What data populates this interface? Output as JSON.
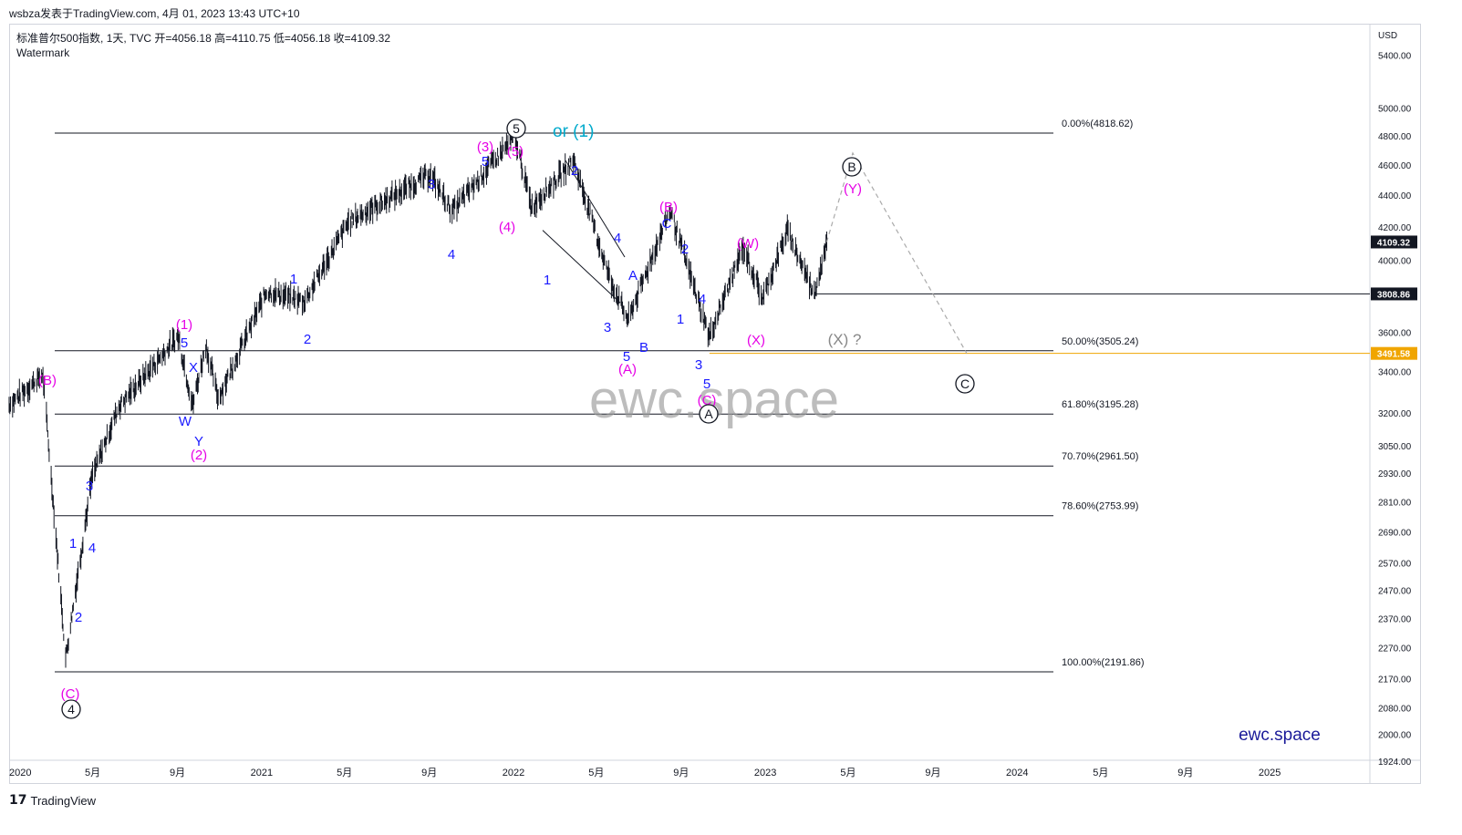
{
  "header": {
    "publisher_line": "wsbza发表于TradingView.com,  4月 01, 2023 13:43 UTC+10",
    "symbol_line": "标准普尔500指数, 1天, TVC  开=4056.18  高=4110.75  低=4056.18  收=4109.32",
    "watermark_label": "Watermark"
  },
  "footer": {
    "logo": "17",
    "brand": "TradingView"
  },
  "colors": {
    "blue": "#1a1aff",
    "magenta": "#e600e6",
    "teal": "#00aacc",
    "gray": "#888888",
    "price_tag": "#131722",
    "orange": "#f0a500",
    "candles": "#131722"
  },
  "chart_data": {
    "type": "line",
    "title": "标准普尔500指数, 1天, TVC",
    "currency": "USD",
    "scale": "log",
    "ylim": [
      1880,
      5900
    ],
    "x_ticks": [
      "2020",
      "5月",
      "9月",
      "2021",
      "5月",
      "9月",
      "2022",
      "5月",
      "9月",
      "2023",
      "5月",
      "9月",
      "2024",
      "5月",
      "9月",
      "2025"
    ],
    "y_ticks": [
      "5400.00",
      "5000.00",
      "4800.00",
      "4600.00",
      "4400.00",
      "4200.00",
      "4000.00",
      "3600.00",
      "3400.00",
      "3200.00",
      "3050.00",
      "2930.00",
      "2810.00",
      "2690.00",
      "2570.00",
      "2470.00",
      "2370.00",
      "2270.00",
      "2170.00",
      "2080.00",
      "2000.00",
      "1924.00"
    ],
    "price_tags": [
      {
        "label": "4109.32",
        "value": 4109.32,
        "style": "dark"
      },
      {
        "label": "3808.86",
        "value": 3808.86,
        "style": "dark"
      },
      {
        "label": "3491.58",
        "value": 3491.58,
        "style": "orange"
      }
    ],
    "fib_levels": [
      {
        "label": "0.00%(4818.62)",
        "value": 4818.62
      },
      {
        "label": "50.00%(3505.24)",
        "value": 3505.24
      },
      {
        "label": "61.80%(3195.28)",
        "value": 3195.28
      },
      {
        "label": "70.70%(2961.50)",
        "value": 2961.5
      },
      {
        "label": "78.60%(2753.99)",
        "value": 2753.99
      },
      {
        "label": "100.00%(2191.86)",
        "value": 2191.86
      }
    ],
    "series": [
      {
        "values_approx": [
          [
            "2020-01-01",
            3240
          ],
          [
            "2020-02-19",
            3386
          ],
          [
            "2020-03-23",
            2237
          ],
          [
            "2020-04-30",
            2912
          ],
          [
            "2020-06-08",
            3232
          ],
          [
            "2020-09-02",
            3580
          ],
          [
            "2020-09-23",
            3236
          ],
          [
            "2020-10-12",
            3534
          ],
          [
            "2020-10-30",
            3270
          ],
          [
            "2021-01-08",
            3824
          ],
          [
            "2021-03-04",
            3768
          ],
          [
            "2021-05-07",
            4232
          ],
          [
            "2021-09-02",
            4537
          ],
          [
            "2021-10-04",
            4300
          ],
          [
            "2022-01-03",
            4796
          ],
          [
            "2022-01-27",
            4326
          ],
          [
            "2022-03-29",
            4631
          ],
          [
            "2022-05-20",
            3900
          ],
          [
            "2022-06-16",
            3666
          ],
          [
            "2022-08-16",
            4305
          ],
          [
            "2022-10-12",
            3577
          ],
          [
            "2022-11-30",
            4080
          ],
          [
            "2022-12-28",
            3783
          ],
          [
            "2023-02-02",
            4179
          ],
          [
            "2023-03-13",
            3808
          ],
          [
            "2023-03-31",
            4109
          ]
        ]
      }
    ],
    "projection": [
      {
        "label": "(Y) / B",
        "value": 4680
      },
      {
        "label": "C",
        "value": 3491.58
      }
    ],
    "wave_labels": [
      {
        "text": "(B)",
        "color": "magenta"
      },
      {
        "text": "(C)",
        "color": "magenta"
      },
      {
        "text": "4",
        "circled": true
      },
      {
        "text": "1",
        "color": "blue"
      },
      {
        "text": "2",
        "color": "blue"
      },
      {
        "text": "3",
        "color": "blue"
      },
      {
        "text": "4",
        "color": "blue"
      },
      {
        "text": "(1)",
        "color": "magenta"
      },
      {
        "text": "5",
        "color": "blue"
      },
      {
        "text": "X",
        "color": "blue"
      },
      {
        "text": "W",
        "color": "blue"
      },
      {
        "text": "Y",
        "color": "blue"
      },
      {
        "text": "(2)",
        "color": "magenta"
      },
      {
        "text": "1",
        "color": "blue"
      },
      {
        "text": "2",
        "color": "blue"
      },
      {
        "text": "3",
        "color": "blue"
      },
      {
        "text": "4",
        "color": "blue"
      },
      {
        "text": "5",
        "color": "blue"
      },
      {
        "text": "(3)",
        "color": "magenta"
      },
      {
        "text": "(4)",
        "color": "magenta"
      },
      {
        "text": "(5)",
        "color": "magenta"
      },
      {
        "text": "5",
        "circled": true
      },
      {
        "text": "or (1)",
        "color": "teal"
      },
      {
        "text": "1",
        "color": "blue"
      },
      {
        "text": "2",
        "color": "blue"
      },
      {
        "text": "3",
        "color": "blue"
      },
      {
        "text": "4",
        "color": "blue"
      },
      {
        "text": "5",
        "color": "blue"
      },
      {
        "text": "A",
        "color": "blue"
      },
      {
        "text": "B",
        "color": "blue"
      },
      {
        "text": "C",
        "color": "blue"
      },
      {
        "text": "(A)",
        "color": "magenta"
      },
      {
        "text": "(B)",
        "color": "magenta"
      },
      {
        "text": "1",
        "color": "blue"
      },
      {
        "text": "2",
        "color": "blue"
      },
      {
        "text": "3",
        "color": "blue"
      },
      {
        "text": "4",
        "color": "blue"
      },
      {
        "text": "5",
        "color": "blue"
      },
      {
        "text": "(C)",
        "color": "magenta"
      },
      {
        "text": "A",
        "circled": true
      },
      {
        "text": "(W)",
        "color": "magenta"
      },
      {
        "text": "(X)",
        "color": "magenta"
      },
      {
        "text": "(X) ?",
        "color": "gray"
      },
      {
        "text": "B",
        "circled": true
      },
      {
        "text": "(Y)",
        "color": "magenta"
      },
      {
        "text": "C",
        "circled": true
      }
    ],
    "watermark": "ewc.space",
    "brand_text": "ewc.space"
  }
}
